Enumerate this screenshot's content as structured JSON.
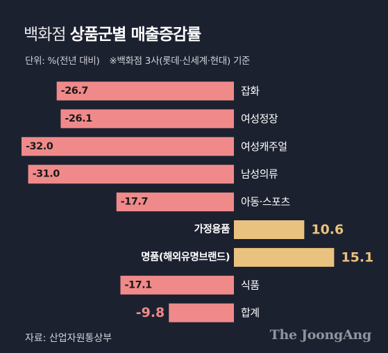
{
  "title": {
    "light": "백화점",
    "bold": "상품군별 매출증감률"
  },
  "subtitle": {
    "unit": "단위: %(전년 대비)",
    "note": "※백화점 3사(롯데·신세계·현대) 기준"
  },
  "source": "자료: 산업자원통상부",
  "logo": "The JoongAng",
  "colors": {
    "negative": "#f08a8a",
    "positive": "#eac27f",
    "background": "#1c2130",
    "text": "#ffffff"
  },
  "chart_data": {
    "type": "bar",
    "orientation": "horizontal",
    "categories": [
      "잡화",
      "여성정장",
      "여성캐주얼",
      "남성의류",
      "아동·스포츠",
      "가정용품",
      "명품(해외유명브랜드)",
      "식품",
      "합계"
    ],
    "values": [
      -26.7,
      -26.1,
      -32.0,
      -31.0,
      -17.7,
      10.6,
      15.1,
      -17.1,
      -9.8
    ],
    "value_labels": [
      "-26.7",
      "-26.1",
      "-32.0",
      "-31.0",
      "-17.7",
      "10.6",
      "15.1",
      "-17.1",
      "-9.8"
    ],
    "xlim": [
      -32.0,
      15.1
    ],
    "grid": false,
    "legend": "none"
  }
}
